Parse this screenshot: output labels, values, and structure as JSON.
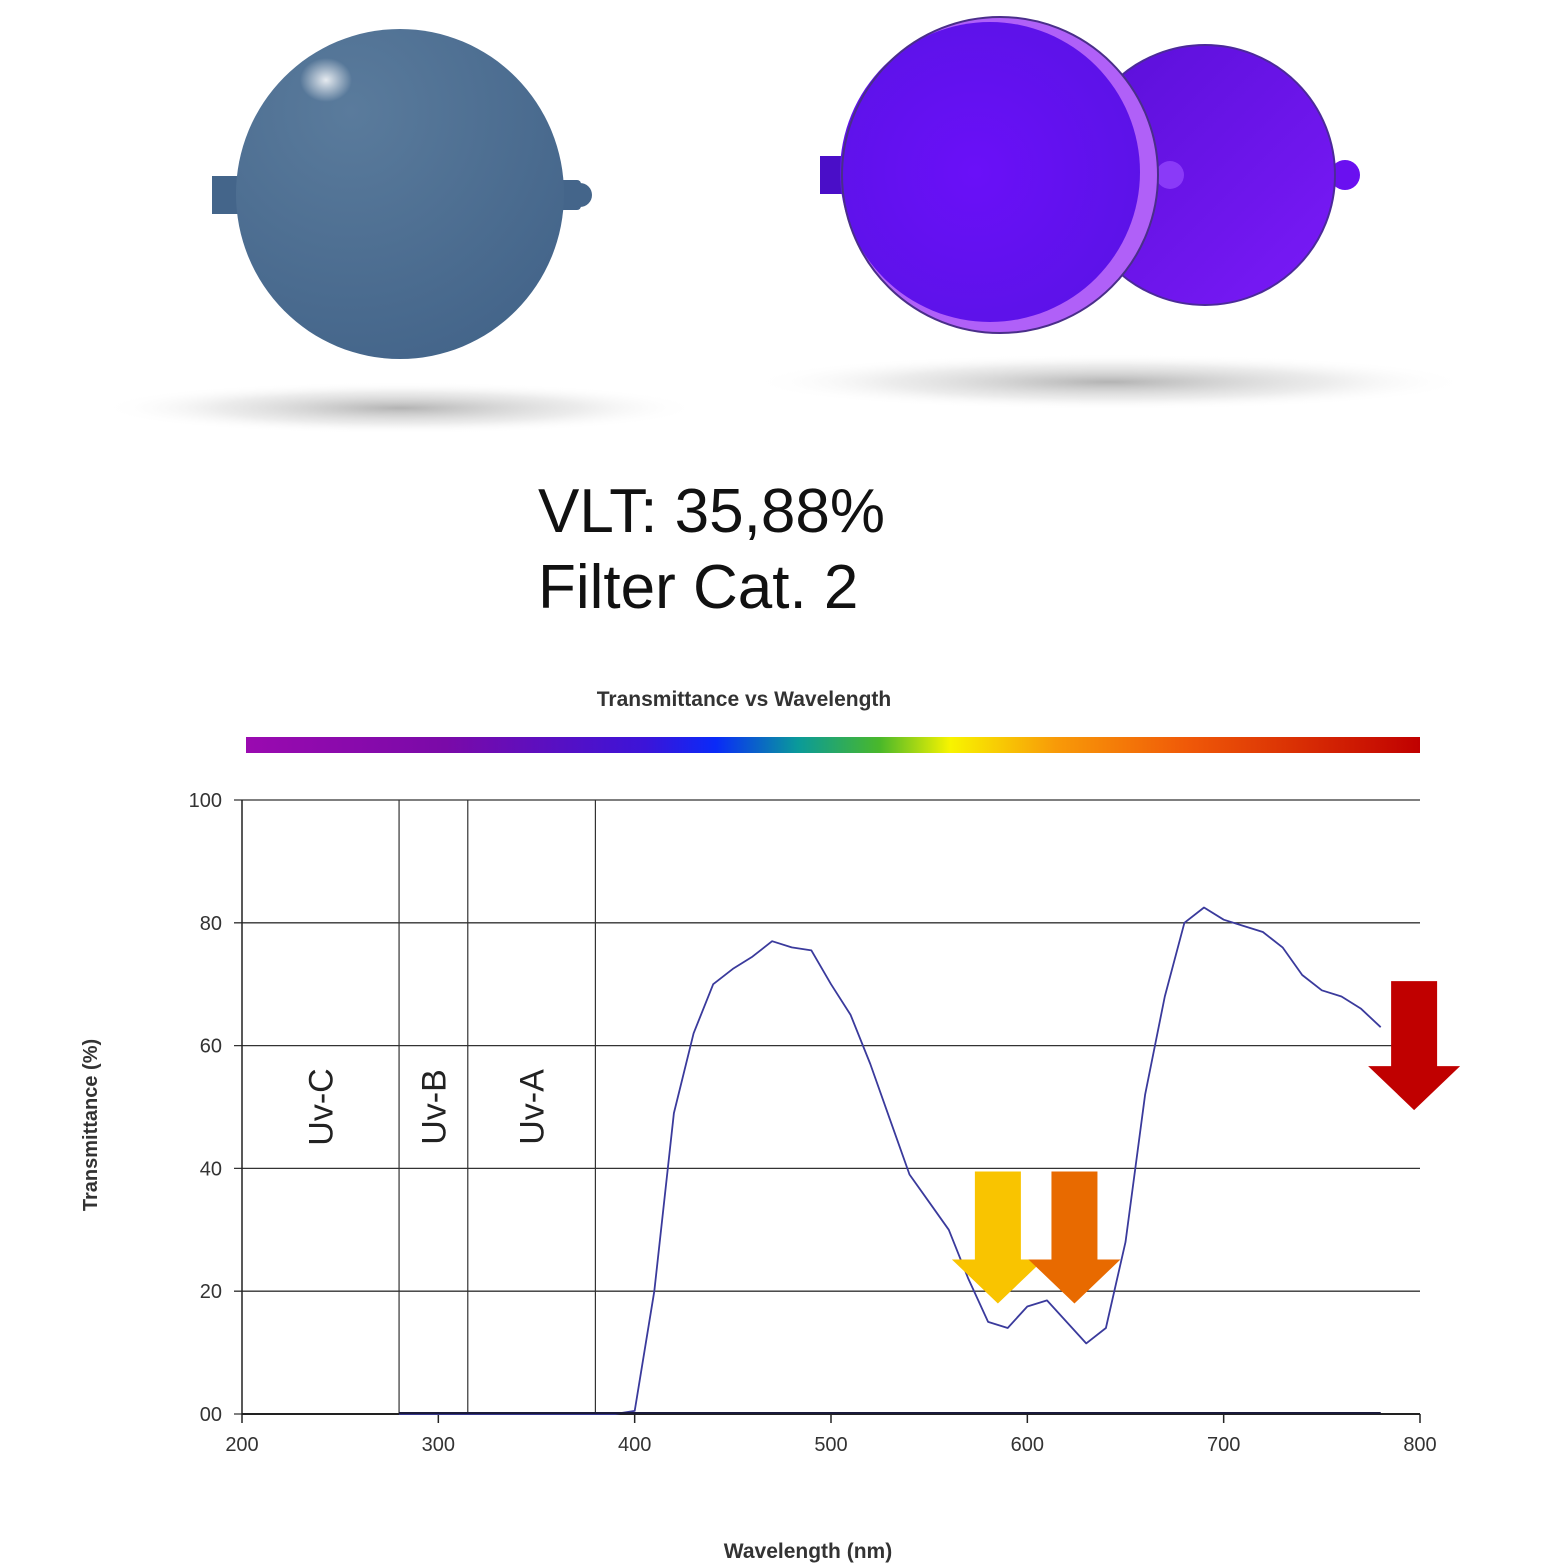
{
  "lens_info": {
    "vlt": "VLT: 35,88%",
    "filter_category": "Filter Cat. 2"
  },
  "colors": {
    "lens_blue": "#4a6a8c",
    "lens_purple": "#6a10f0",
    "curve": "#3a3a9c",
    "arrow_yellow": "#f9c400",
    "arrow_orange": "#e86a00",
    "arrow_red": "#c00000"
  },
  "icons": [
    "lens-flat-icon",
    "lens-pair-icon",
    "arrow-down-icon"
  ],
  "chart_data": {
    "type": "line",
    "title": "Transmittance vs Wavelength",
    "xlabel": "Wavelength (nm)",
    "ylabel": "Transmittance (%)",
    "xlim": [
      200,
      800
    ],
    "ylim": [
      0,
      100
    ],
    "x_ticks": [
      "200",
      "300",
      "400",
      "500",
      "600",
      "700",
      "800"
    ],
    "y_ticks": [
      "00",
      "20",
      "40",
      "60",
      "80",
      "100"
    ],
    "grid": "horizontal",
    "bands": [
      {
        "label": "Uv-C",
        "from": 200,
        "to": 280
      },
      {
        "label": "Uv-B",
        "from": 280,
        "to": 315
      },
      {
        "label": "Uv-A",
        "from": 315,
        "to": 380
      }
    ],
    "series": [
      {
        "x": [
          280,
          300,
          350,
          390,
          400,
          410,
          420,
          430,
          440,
          450,
          460,
          470,
          480,
          490,
          500,
          510,
          520,
          530,
          540,
          550,
          560,
          570,
          580,
          590,
          600,
          610,
          620,
          630,
          640,
          650,
          660,
          670,
          680,
          690,
          700,
          710,
          720,
          730,
          740,
          750,
          760,
          770,
          780
        ],
        "values": [
          0,
          0,
          0,
          0,
          0.5,
          20,
          49,
          62,
          70,
          72.5,
          74.5,
          77,
          76,
          75.5,
          70,
          65,
          57,
          48,
          39,
          34.5,
          30,
          22,
          15,
          14,
          17.5,
          18.5,
          15,
          11.5,
          14,
          28,
          52,
          68,
          80,
          82.5,
          80.5,
          79.5,
          78.5,
          76,
          71.5,
          69,
          68,
          66,
          63
        ]
      }
    ],
    "annotations": [
      {
        "type": "arrow-down",
        "x": 585,
        "y_top": 39.5,
        "y_tip": 18,
        "color": "yellow"
      },
      {
        "type": "arrow-down",
        "x": 624,
        "y_top": 39.5,
        "y_tip": 18,
        "color": "orange"
      },
      {
        "type": "arrow-down",
        "x": 797,
        "y_top": 70.5,
        "y_tip": 49.5,
        "color": "red"
      }
    ]
  }
}
